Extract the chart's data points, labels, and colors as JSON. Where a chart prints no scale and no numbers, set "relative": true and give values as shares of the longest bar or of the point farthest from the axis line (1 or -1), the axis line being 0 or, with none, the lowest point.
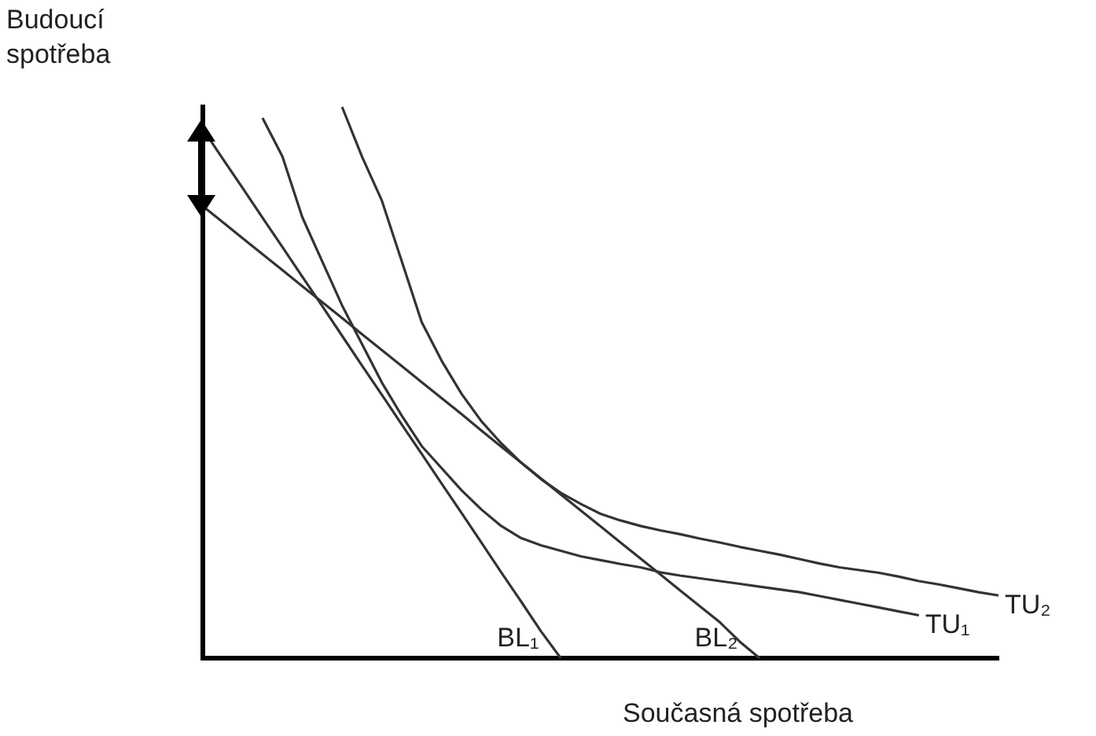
{
  "chart_data": {
    "type": "line",
    "relative": true,
    "xlabel": "Současná spotřeba",
    "ylabel": "Budoucí spotřeba",
    "legend": false,
    "grid": false,
    "marker": "none",
    "categories": [
      null,
      null,
      null,
      null,
      null,
      null,
      null,
      null,
      null,
      null,
      null,
      null,
      null,
      null,
      null,
      null,
      null,
      null,
      null,
      null,
      null,
      null,
      null,
      null,
      null,
      null,
      null,
      null,
      null,
      null,
      null,
      null,
      null,
      null,
      null,
      null,
      null,
      null,
      null,
      null,
      null
    ],
    "series": [
      {
        "name": "BL₁",
        "color": "#333333",
        "values": [
          0.96,
          0.906,
          0.853,
          0.799,
          0.746,
          0.692,
          0.639,
          0.585,
          0.531,
          0.478,
          0.424,
          0.371,
          0.317,
          0.264,
          0.21,
          0.156,
          0.103,
          0.049,
          0,
          null,
          null,
          null,
          null,
          null,
          null,
          null,
          null,
          null,
          null,
          null,
          null,
          null,
          null,
          null,
          null,
          null,
          null,
          null,
          null,
          null,
          null
        ]
      },
      {
        "name": "BL₂",
        "color": "#333333",
        "values": [
          0.82,
          0.791,
          0.762,
          0.733,
          0.704,
          0.675,
          0.646,
          0.617,
          0.588,
          0.559,
          0.53,
          0.501,
          0.472,
          0.443,
          0.413,
          0.384,
          0.355,
          0.326,
          0.297,
          0.268,
          0.239,
          0.21,
          0.181,
          0.152,
          0.123,
          0.094,
          0.065,
          0.03,
          0,
          null,
          null,
          null,
          null,
          null,
          null,
          null,
          null,
          null,
          null,
          null,
          null
        ]
      },
      {
        "name": "TU₁",
        "color": "#333333",
        "values": [
          null,
          null,
          null,
          0.98,
          0.91,
          0.8,
          0.72,
          0.64,
          0.57,
          0.5,
          0.44,
          0.385,
          0.345,
          0.305,
          0.27,
          0.24,
          0.218,
          0.205,
          0.195,
          0.185,
          0.178,
          0.171,
          0.165,
          0.156,
          0.15,
          0.145,
          0.14,
          0.135,
          0.13,
          0.125,
          0.12,
          0.113,
          0.106,
          0.099,
          0.092,
          0.085,
          0.078,
          null,
          null,
          null,
          null
        ]
      },
      {
        "name": "TU₂",
        "color": "#333333",
        "values": [
          null,
          null,
          null,
          null,
          null,
          null,
          null,
          1,
          0.91,
          0.83,
          0.72,
          0.61,
          0.54,
          0.48,
          0.43,
          0.39,
          0.355,
          0.325,
          0.3,
          0.28,
          0.262,
          0.25,
          0.24,
          0.232,
          0.225,
          0.217,
          0.21,
          0.202,
          0.195,
          0.188,
          0.18,
          0.172,
          0.165,
          0.16,
          0.155,
          0.148,
          0.14,
          0.134,
          0.127,
          0.12,
          0.114
        ]
      }
    ]
  }
}
